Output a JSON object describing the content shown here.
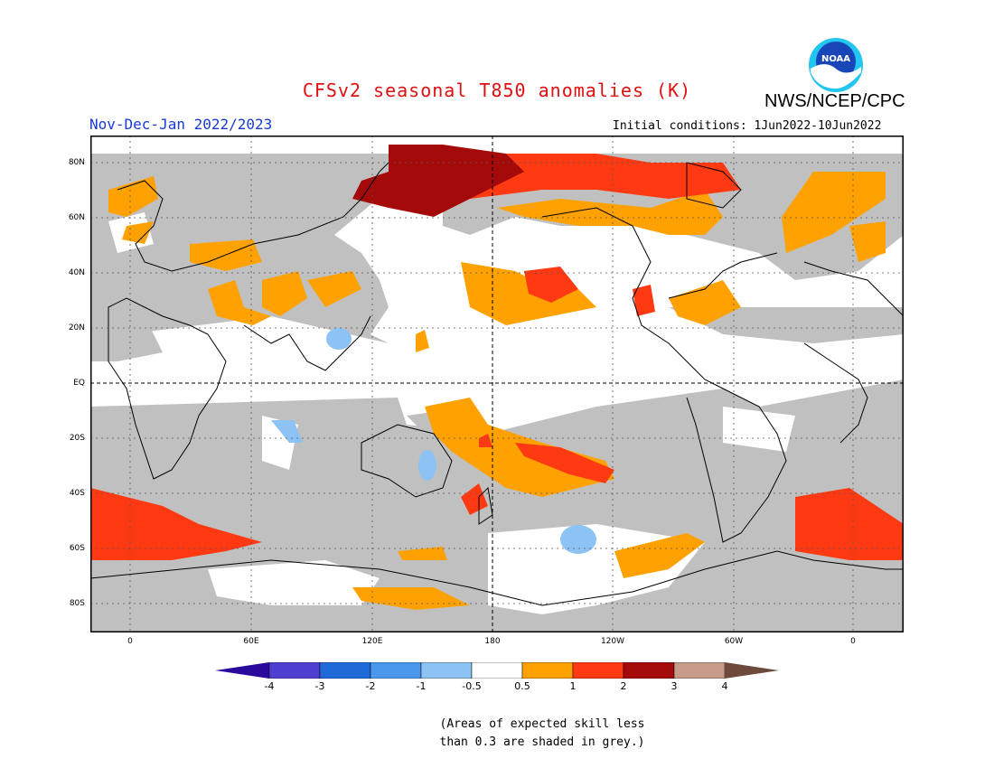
{
  "header": {
    "title": "CFSv2 seasonal T850 anomalies (K)",
    "org": "NWS/NCEP/CPC",
    "season": "Nov-Dec-Jan 2022/2023",
    "initial_conditions": "Initial conditions: 1Jun2022-10Jun2022",
    "logo_text": "NOAA"
  },
  "axes": {
    "lat_labels": [
      "80N",
      "60N",
      "40N",
      "20N",
      "EQ",
      "20S",
      "40S",
      "60S",
      "80S"
    ],
    "lon_labels": [
      "0",
      "60E",
      "120E",
      "180",
      "120W",
      "60W",
      "0"
    ]
  },
  "colorbar": {
    "labels": [
      "-4",
      "-3",
      "-2",
      "-1",
      "-0.5",
      "0.5",
      "1",
      "2",
      "3",
      "4"
    ],
    "colors": [
      "#2a0a9c",
      "#4f3fd0",
      "#1f6ad8",
      "#4a98ee",
      "#8cc2f4",
      "#ffffff",
      "#ffa100",
      "#ff3a12",
      "#a50a0a",
      "#c79a8a",
      "#6e4a3c"
    ]
  },
  "map_colors": {
    "land_ocean_base": "#ffffff",
    "low_skill_grey": "#c0c0c0",
    "anomaly_05_1": "#ffa100",
    "anomaly_1_2": "#ff3a12",
    "anomaly_2_3": "#a50a0a",
    "anomaly_neg_05_1": "#8cc2f4"
  },
  "footnote": {
    "line1": "(Areas of expected skill less",
    "line2": "than 0.3 are shaded in grey.)"
  }
}
